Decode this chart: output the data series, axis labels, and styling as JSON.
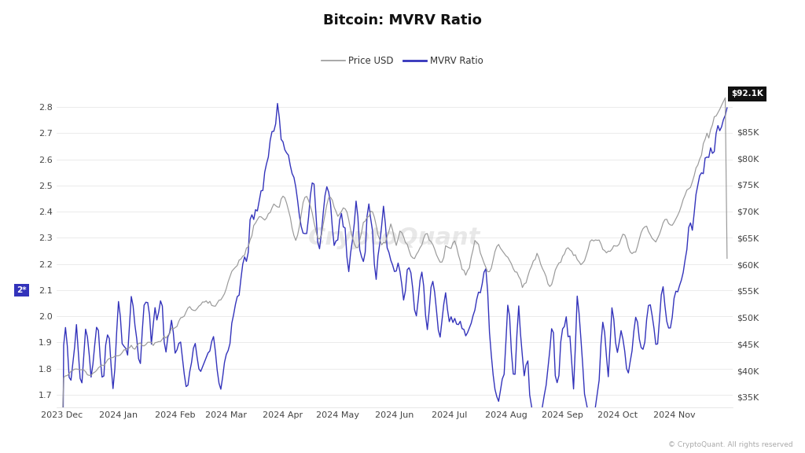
{
  "title": "Bitcoin: MVRV Ratio",
  "legend_labels": [
    "Price USD",
    "MVRV Ratio"
  ],
  "price_color": "#999999",
  "mvrv_color": "#3333bb",
  "background_color": "#ffffff",
  "left_ylim": [
    1.65,
    2.95
  ],
  "right_ylim": [
    33000,
    97000
  ],
  "left_yticks": [
    1.7,
    1.8,
    1.9,
    2.0,
    2.1,
    2.2,
    2.3,
    2.4,
    2.5,
    2.6,
    2.7,
    2.8
  ],
  "right_yticks": [
    35000,
    40000,
    45000,
    50000,
    55000,
    60000,
    65000,
    70000,
    75000,
    80000,
    85000
  ],
  "annotation_value": "$92.1K",
  "annotation_mvrv": "2*",
  "watermark": "CryptoQuant",
  "copyright": "© CryptoQuant. All rights reserved",
  "month_ticks": [
    0,
    31,
    62,
    90,
    121,
    151,
    182,
    212,
    243,
    274,
    304,
    335
  ],
  "month_labels": [
    "2023 Dec",
    "2024 Jan",
    "2024 Feb",
    "2024 Mar",
    "2024 Apr",
    "2024 May",
    "2024 Jun",
    "2024 Jul",
    "2024 Aug",
    "2024 Sep",
    "2024 Oct",
    "2024 Nov"
  ]
}
